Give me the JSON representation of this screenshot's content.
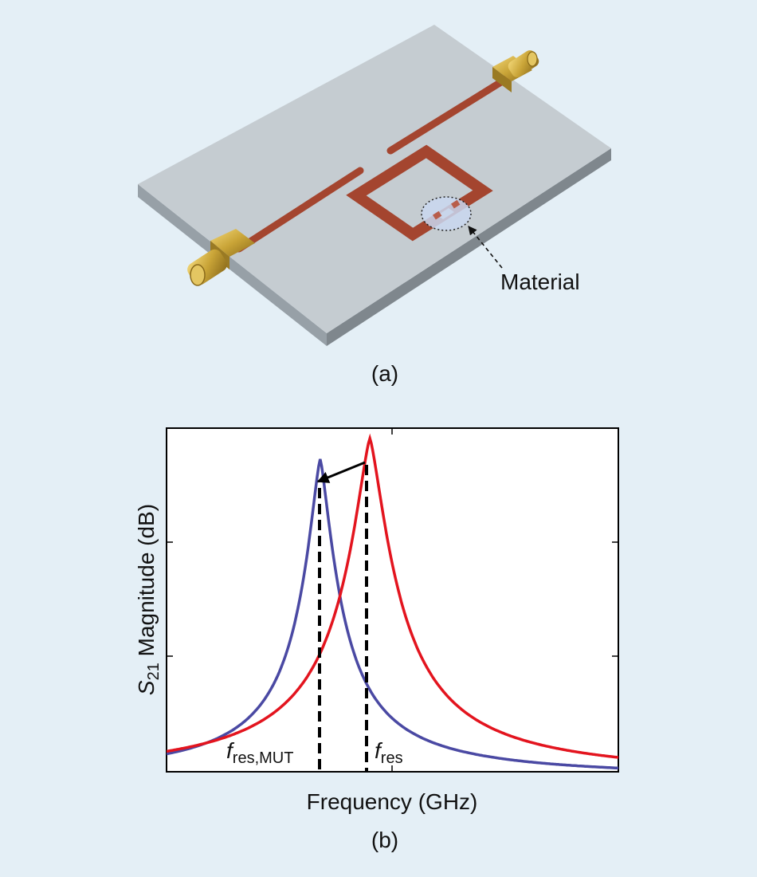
{
  "panel_a": {
    "caption": "(a)",
    "material_label": "Material"
  },
  "panel_b": {
    "caption": "(b)",
    "xlabel": "Frequency (GHz)",
    "ylabel_main": "S",
    "ylabel_sub": "21",
    "ylabel_rest": " Magnitude (dB)",
    "fres_mut_main": "f",
    "fres_mut_sub": "res,MUT",
    "fres_main": "f",
    "fres_sub": "res"
  },
  "colors": {
    "background": "#e4eff6",
    "substrate_top": "#c5ccd1",
    "copper": "#a4452f",
    "connector_gold": "#c9a437",
    "material_highlight": "#c9d7f0",
    "curve_shifted": "#4a49a3",
    "curve_reference": "#e3141e"
  },
  "chart_data": {
    "type": "line",
    "title": "",
    "xlabel": "Frequency (GHz)",
    "ylabel": "S21 Magnitude (dB)",
    "xlim": [
      0,
      1
    ],
    "ylim": [
      0,
      1
    ],
    "grid": false,
    "legend": "none",
    "series": [
      {
        "resonance_x": 0.34,
        "peak_y": 0.93,
        "halfwidth": 0.11,
        "color": "#4a49a3"
      },
      {
        "resonance_x": 0.45,
        "peak_y": 0.99,
        "halfwidth": 0.15,
        "color": "#e3141e"
      }
    ],
    "markers": [
      {
        "x": 0.34,
        "label": "f res,MUT"
      },
      {
        "x": 0.45,
        "label": "f res"
      }
    ]
  }
}
